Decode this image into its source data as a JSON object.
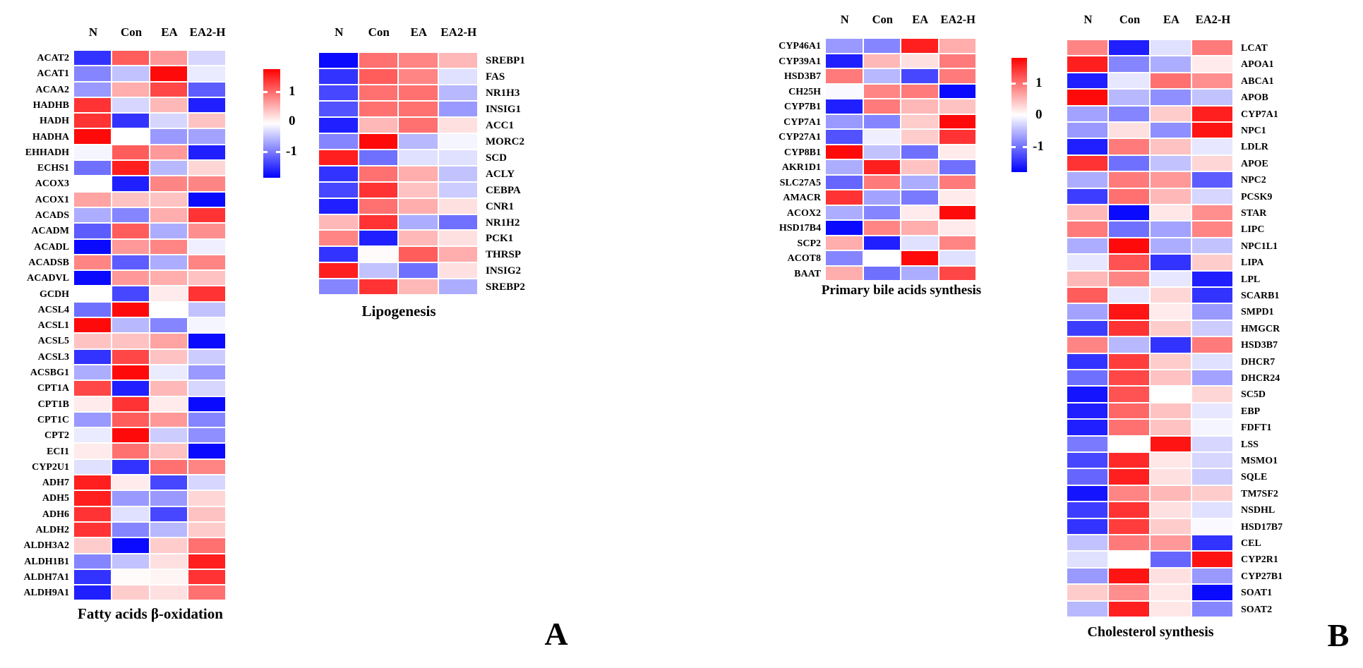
{
  "figure": {
    "panel_labels": [
      "A",
      "B"
    ],
    "colorbar": {
      "ticks": [
        "1",
        "0",
        "-1"
      ],
      "max_color": "#FF0000",
      "mid_color": "#FFFFFF",
      "min_color": "#0000FF"
    }
  },
  "chart_data": [
    {
      "type": "heatmap",
      "title": "Fatty acids β-oxidation",
      "label_side": "left",
      "legend_ticks": [
        1,
        0,
        -1
      ],
      "value_range": [
        -1.25,
        1.25
      ],
      "columns": [
        "N",
        "Con",
        "EA",
        "EA2-H"
      ],
      "rows": [
        "ACAT2",
        "ACAT1",
        "ACAA2",
        "HADHB",
        "HADH",
        "HADHA",
        "EHHADH",
        "ECHS1",
        "ACOX3",
        "ACOX1",
        "ACADS",
        "ACADM",
        "ACADL",
        "ACADSB",
        "ACADVL",
        "GCDH",
        "ACSL4",
        "ACSL1",
        "ACSL5",
        "ACSL3",
        "ACSBG1",
        "CPT1A",
        "CPT1B",
        "CPT1C",
        "CPT2",
        "ECI1",
        "CYP2U1",
        "ADH7",
        "ADH5",
        "ADH6",
        "ALDH2",
        "ALDH3A2",
        "ALDH1B1",
        "ALDH7A1",
        "ALDH9A1"
      ],
      "values": [
        [
          -1.0,
          0.8,
          0.5,
          -0.2
        ],
        [
          -0.6,
          -0.3,
          1.2,
          -0.1
        ],
        [
          -0.5,
          0.4,
          0.9,
          -0.8
        ],
        [
          1.0,
          -0.2,
          0.35,
          -1.1
        ],
        [
          1.0,
          -1.0,
          -0.2,
          0.3
        ],
        [
          1.2,
          0.0,
          -0.5,
          -0.45
        ],
        [
          -0.05,
          0.8,
          0.5,
          -1.1
        ],
        [
          -0.7,
          1.1,
          -0.35,
          0.2
        ],
        [
          0.0,
          -1.1,
          0.6,
          0.6
        ],
        [
          0.45,
          0.3,
          0.3,
          -1.2
        ],
        [
          -0.4,
          -0.6,
          0.4,
          1.0
        ],
        [
          -0.8,
          0.8,
          -0.4,
          0.55
        ],
        [
          -1.2,
          0.5,
          0.6,
          -0.08
        ],
        [
          0.6,
          -0.8,
          -0.4,
          0.6
        ],
        [
          -1.2,
          0.5,
          0.4,
          0.3
        ],
        [
          0.0,
          -0.9,
          0.1,
          1.0
        ],
        [
          -0.7,
          1.2,
          0.0,
          -0.3
        ],
        [
          1.2,
          -0.35,
          -0.6,
          -0.05
        ],
        [
          0.3,
          0.3,
          0.45,
          -1.2
        ],
        [
          -1.0,
          0.9,
          0.3,
          -0.25
        ],
        [
          -0.4,
          1.2,
          -0.1,
          -0.5
        ],
        [
          0.9,
          -1.1,
          0.35,
          -0.2
        ],
        [
          0.1,
          1.0,
          0.1,
          -1.2
        ],
        [
          -0.5,
          0.8,
          0.5,
          -0.6
        ],
        [
          -0.1,
          1.2,
          -0.25,
          -0.55
        ],
        [
          0.1,
          0.7,
          0.3,
          -1.2
        ],
        [
          -0.15,
          -1.0,
          0.7,
          0.6
        ],
        [
          1.1,
          0.1,
          -0.9,
          -0.2
        ],
        [
          1.1,
          -0.5,
          -0.5,
          0.2
        ],
        [
          1.0,
          -0.15,
          -0.9,
          0.3
        ],
        [
          1.0,
          -0.6,
          -0.35,
          0.25
        ],
        [
          0.25,
          -1.2,
          0.25,
          0.7
        ],
        [
          -0.6,
          -0.3,
          0.15,
          1.1
        ],
        [
          -1.0,
          0.02,
          0.05,
          1.0
        ],
        [
          -1.1,
          0.25,
          0.15,
          0.7
        ]
      ]
    },
    {
      "type": "heatmap",
      "title": "Lipogenesis",
      "label_side": "right",
      "legend_ticks": [
        1,
        0,
        -1
      ],
      "value_range": [
        -1.25,
        1.25
      ],
      "columns": [
        "N",
        "Con",
        "EA",
        "EA2-H"
      ],
      "rows": [
        "SREBP1",
        "FAS",
        "NR1H3",
        "INSIG1",
        "ACC1",
        "MORC2",
        "SCD",
        "ACLY",
        "CEBPA",
        "CNR1",
        "NR1H2",
        "PCK1",
        "THRSP",
        "INSIG2",
        "SREBP2"
      ],
      "values": [
        [
          -1.2,
          0.7,
          0.6,
          0.35
        ],
        [
          -1.0,
          0.8,
          0.6,
          -0.15
        ],
        [
          -0.9,
          0.7,
          0.7,
          -0.35
        ],
        [
          -0.85,
          0.7,
          0.7,
          -0.5
        ],
        [
          -1.1,
          0.35,
          0.7,
          0.15
        ],
        [
          -0.6,
          1.2,
          -0.35,
          -0.05
        ],
        [
          1.1,
          -0.7,
          -0.15,
          -0.15
        ],
        [
          -1.0,
          0.7,
          0.4,
          -0.3
        ],
        [
          -0.9,
          1.0,
          0.3,
          -0.25
        ],
        [
          -1.1,
          0.7,
          0.4,
          0.15
        ],
        [
          0.35,
          1.0,
          -0.4,
          -0.7
        ],
        [
          0.6,
          -1.1,
          0.35,
          0.15
        ],
        [
          -1.0,
          0.02,
          0.8,
          0.4
        ],
        [
          1.1,
          -0.3,
          -0.7,
          0.15
        ],
        [
          -0.6,
          1.0,
          0.35,
          -0.4
        ]
      ]
    },
    {
      "type": "heatmap",
      "title": "Primary bile acids synthesis",
      "label_side": "left",
      "legend_ticks": [
        1,
        0,
        -1
      ],
      "value_range": [
        -1.25,
        1.25
      ],
      "columns": [
        "N",
        "Con",
        "EA",
        "EA2-H"
      ],
      "rows": [
        "CYP46A1",
        "CYP39A1",
        "HSD3B7",
        "CH25H",
        "CYP7B1",
        "CYP7A1",
        "CYP27A1",
        "CYP8B1",
        "AKR1D1",
        "SLC27A5",
        "AMACR",
        "ACOX2",
        "HSD17B4",
        "SCP2",
        "ACOT8",
        "BAAT"
      ],
      "values": [
        [
          -0.5,
          -0.6,
          1.1,
          0.4
        ],
        [
          -1.1,
          0.35,
          0.15,
          0.65
        ],
        [
          0.65,
          -0.35,
          -0.9,
          0.65
        ],
        [
          -0.03,
          0.6,
          0.65,
          -1.2
        ],
        [
          -1.1,
          0.65,
          0.35,
          0.3
        ],
        [
          -0.5,
          -0.6,
          0.25,
          1.2
        ],
        [
          -0.85,
          -0.08,
          0.25,
          1.0
        ],
        [
          1.2,
          -0.3,
          -0.7,
          0.1
        ],
        [
          -0.4,
          1.1,
          0.3,
          -0.7
        ],
        [
          -0.75,
          0.65,
          -0.4,
          0.65
        ],
        [
          1.0,
          -0.45,
          -0.65,
          0.1
        ],
        [
          -0.4,
          -0.6,
          0.1,
          1.2
        ],
        [
          -1.2,
          0.6,
          0.4,
          0.1
        ],
        [
          0.4,
          -1.1,
          -0.15,
          0.6
        ],
        [
          -0.6,
          0.0,
          1.2,
          -0.15
        ],
        [
          0.4,
          -0.7,
          -0.4,
          0.9
        ]
      ]
    },
    {
      "type": "heatmap",
      "title": "Cholesterol synthesis",
      "label_side": "right",
      "legend_ticks": [
        1,
        0,
        -1
      ],
      "value_range": [
        -1.25,
        1.25
      ],
      "columns": [
        "N",
        "Con",
        "EA",
        "EA2-H"
      ],
      "rows": [
        "LCAT",
        "APOA1",
        "ABCA1",
        "APOB",
        "CYP7A1",
        "NPC1",
        "LDLR",
        "APOE",
        "NPC2",
        "PCSK9",
        "STAR",
        "LIPC",
        "NPC1L1",
        "LIPA",
        "LPL",
        "SCARB1",
        "SMPD1",
        "HMGCR",
        "HSD3B7",
        "DHCR7",
        "DHCR24",
        "SC5D",
        "EBP",
        "FDFT1",
        "LSS",
        "MSMO1",
        "SQLE",
        "TM7SF2",
        "NSDHL",
        "HSD17B7",
        "CEL",
        "CYP2R1",
        "CYP27B1",
        "SOAT1",
        "SOAT2"
      ],
      "values": [
        [
          0.6,
          -1.1,
          -0.15,
          0.65
        ],
        [
          1.1,
          -0.6,
          -0.4,
          0.1
        ],
        [
          -1.1,
          -0.12,
          0.7,
          0.55
        ],
        [
          1.2,
          -0.35,
          -0.55,
          -0.3
        ],
        [
          -0.45,
          -0.6,
          0.25,
          1.1
        ],
        [
          -0.5,
          0.15,
          -0.55,
          1.15
        ],
        [
          -1.1,
          0.65,
          0.3,
          -0.12
        ],
        [
          1.0,
          -0.7,
          -0.3,
          0.2
        ],
        [
          -0.4,
          0.65,
          0.5,
          -0.8
        ],
        [
          -0.95,
          0.7,
          0.35,
          -0.2
        ],
        [
          0.35,
          -1.2,
          0.12,
          0.55
        ],
        [
          0.65,
          -0.7,
          -0.45,
          0.6
        ],
        [
          -0.4,
          1.2,
          -0.4,
          -0.3
        ],
        [
          -0.12,
          0.85,
          -1.0,
          0.25
        ],
        [
          0.35,
          0.6,
          -0.12,
          -1.1
        ],
        [
          0.8,
          -0.12,
          0.2,
          -1.0
        ],
        [
          -0.45,
          1.15,
          0.1,
          -0.5
        ],
        [
          -0.95,
          1.0,
          0.25,
          -0.25
        ],
        [
          0.6,
          -0.35,
          -1.0,
          0.65
        ],
        [
          -1.0,
          0.95,
          0.25,
          -0.15
        ],
        [
          -0.7,
          0.9,
          0.3,
          -0.45
        ],
        [
          -1.15,
          0.85,
          0.0,
          0.2
        ],
        [
          -1.1,
          0.75,
          0.3,
          -0.12
        ],
        [
          -1.1,
          0.7,
          0.3,
          -0.05
        ],
        [
          -0.65,
          0.0,
          1.15,
          -0.2
        ],
        [
          -0.9,
          1.05,
          0.12,
          -0.2
        ],
        [
          -0.75,
          1.1,
          0.15,
          -0.25
        ],
        [
          -1.15,
          0.6,
          0.35,
          0.25
        ],
        [
          -0.95,
          1.0,
          0.15,
          -0.15
        ],
        [
          -1.0,
          0.95,
          0.25,
          -0.03
        ],
        [
          -0.3,
          0.65,
          0.5,
          -1.0
        ],
        [
          -0.15,
          0.0,
          -0.75,
          1.15
        ],
        [
          -0.5,
          1.15,
          0.15,
          -0.5
        ],
        [
          0.25,
          0.55,
          0.12,
          -1.2
        ],
        [
          -0.35,
          1.1,
          0.12,
          -0.6
        ]
      ]
    }
  ]
}
